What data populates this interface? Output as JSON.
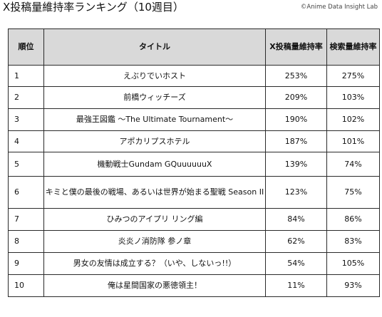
{
  "header": {
    "title": "X投稿量維持率ランキング（10週目）",
    "credit": "©Anime Data Insight Lab"
  },
  "table": {
    "columns": [
      "順位",
      "タイトル",
      "X投稿量維持率",
      "検索量維持率"
    ],
    "rows": [
      {
        "rank": "1",
        "title": "えぶりでいホスト",
        "x_rate": "253%",
        "search_rate": "275%"
      },
      {
        "rank": "2",
        "title": "前橋ウィッチーズ",
        "x_rate": "209%",
        "search_rate": "103%"
      },
      {
        "rank": "3",
        "title": "最強王図鑑 〜The Ultimate Tournament〜",
        "x_rate": "190%",
        "search_rate": "102%"
      },
      {
        "rank": "4",
        "title": "アポカリプスホテル",
        "x_rate": "187%",
        "search_rate": "101%"
      },
      {
        "rank": "5",
        "title": "機動戦士Gundam GQuuuuuuX",
        "x_rate": "139%",
        "search_rate": "74%"
      },
      {
        "rank": "6",
        "title": "キミと僕の最後の戦場、あるいは世界が始まる聖戦 Season II",
        "x_rate": "123%",
        "search_rate": "75%"
      },
      {
        "rank": "7",
        "title": "ひみつのアイプリ リング編",
        "x_rate": "84%",
        "search_rate": "86%"
      },
      {
        "rank": "8",
        "title": "炎炎ノ消防隊 参ノ章",
        "x_rate": "62%",
        "search_rate": "83%"
      },
      {
        "rank": "9",
        "title": "男女の友情は成立する？（いや、しないっ!!）",
        "x_rate": "54%",
        "search_rate": "105%"
      },
      {
        "rank": "10",
        "title": "俺は星間国家の悪徳領主！",
        "x_rate": "11%",
        "search_rate": "93%"
      }
    ]
  }
}
